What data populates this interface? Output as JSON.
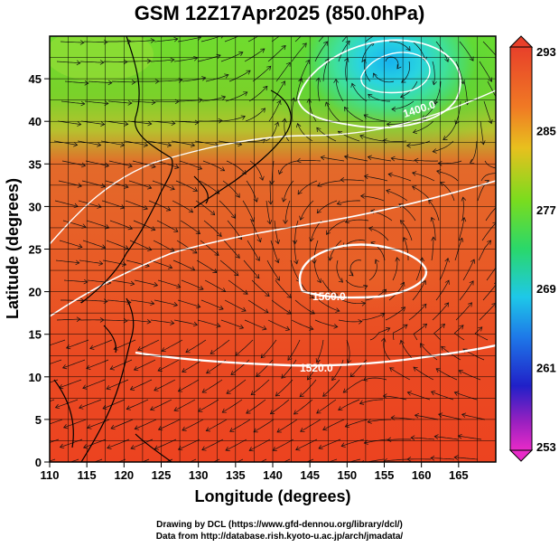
{
  "title": "GSM 12Z17Apr2025 (850.0hPa)",
  "xlabel": "Longitude (degrees)",
  "ylabel": "Latitude  (degrees)",
  "xticks": [
    "110",
    "115",
    "120",
    "125",
    "130",
    "135",
    "140",
    "145",
    "150",
    "155",
    "160",
    "165"
  ],
  "yticks": [
    "0",
    "5",
    "10",
    "15",
    "20",
    "25",
    "30",
    "35",
    "40",
    "45"
  ],
  "colorbar": {
    "labels": [
      "293",
      "285",
      "277",
      "269",
      "261",
      "253"
    ]
  },
  "contour_labels": [
    "1560.0",
    "1520.0",
    "1400.0"
  ],
  "credits": {
    "line1": "Drawing by DCL (https://www.gfd-dennou.org/library/dcl/)",
    "line2": "Data from http://database.rish.kyoto-u.ac.jp/arch/jmadata/"
  }
}
